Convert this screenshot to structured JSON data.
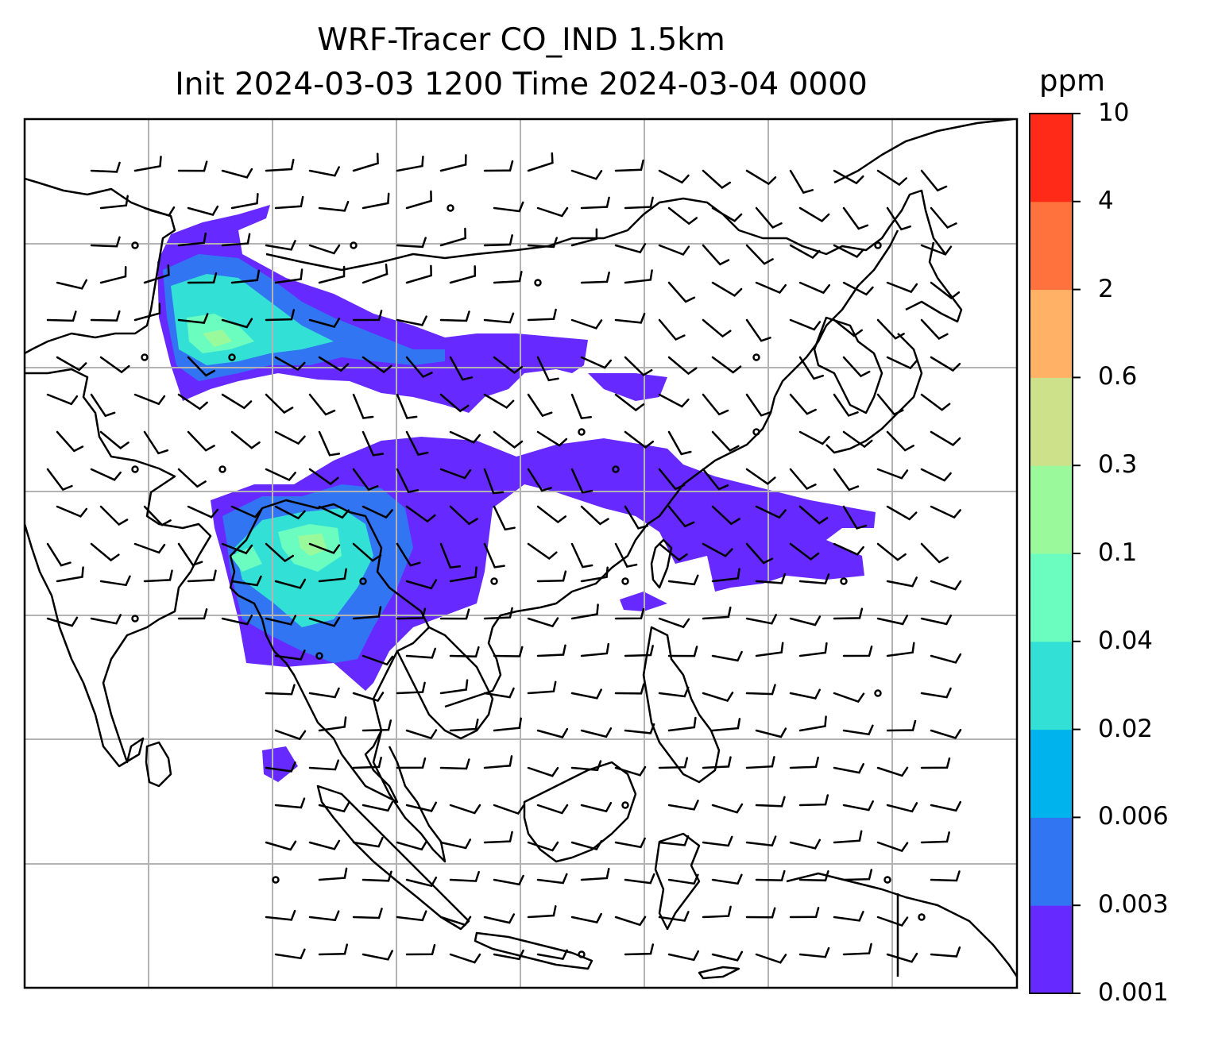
{
  "title": {
    "line1": "WRF-Tracer CO_IND 1.5km",
    "line2": "Init 2024-03-03 1200 Time 2024-03-04 0000"
  },
  "colorbar": {
    "unit": "ppm",
    "levels": [
      "0.001",
      "0.003",
      "0.006",
      "0.02",
      "0.04",
      "0.1",
      "0.3",
      "0.6",
      "2",
      "4",
      "10"
    ],
    "colors": [
      "#6629ff",
      "#3275f2",
      "#00b3ec",
      "#32e0d6",
      "#6bfdc0",
      "#9afa9b",
      "#cde08a",
      "#ffb266",
      "#ff713d",
      "#ff2a17"
    ]
  },
  "map": {
    "gridlines": true,
    "coastline_color": "#000000",
    "gridline_color": "#b3b3b3",
    "overlay": "wind-barbs"
  }
}
